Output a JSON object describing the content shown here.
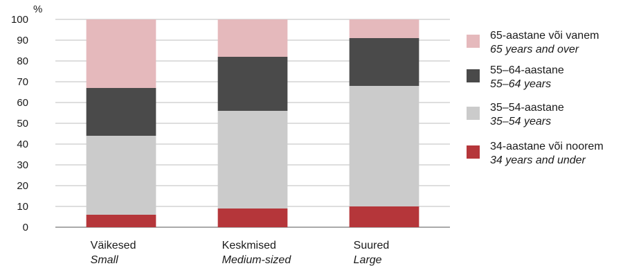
{
  "chart_data": {
    "type": "bar",
    "stacked": true,
    "y_unit_label": "%",
    "ylim": [
      0,
      100
    ],
    "y_ticks": [
      0,
      10,
      20,
      30,
      40,
      50,
      60,
      70,
      80,
      90,
      100
    ],
    "grid": true,
    "legend_position": "right",
    "categories": [
      {
        "et": "Väikesed",
        "en": "Small"
      },
      {
        "et": "Keskmised",
        "en": "Medium-sized"
      },
      {
        "et": "Suured",
        "en": "Large"
      }
    ],
    "series": [
      {
        "key": "s34",
        "name": "34-aastane või noorem",
        "name_en": "34 years and under",
        "color": "#b5363a",
        "values": [
          6,
          9,
          10
        ]
      },
      {
        "key": "s35",
        "name": "35–54-aastane",
        "name_en": "35–54 years",
        "color": "#cbcbcb",
        "values": [
          38,
          47,
          58
        ]
      },
      {
        "key": "s55",
        "name": "55–64-aastane",
        "name_en": "55–64 years",
        "color": "#4a4a4a",
        "values": [
          23,
          26,
          23
        ]
      },
      {
        "key": "s65",
        "name": "65-aastane või vanem",
        "name_en": "65 years and over",
        "color": "#e5b9bc",
        "values": [
          33,
          18,
          9
        ]
      }
    ]
  }
}
